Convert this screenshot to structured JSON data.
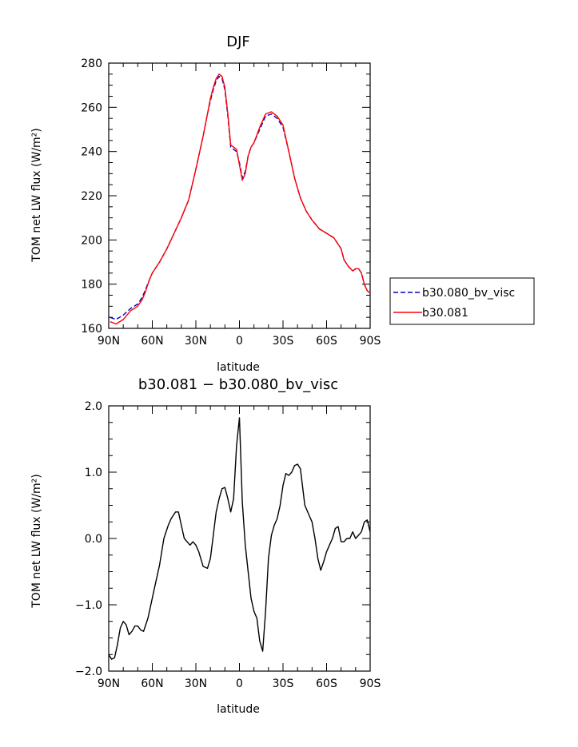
{
  "chart_data": [
    {
      "type": "line",
      "title": "DJF",
      "xlabel": "latitude",
      "ylabel": "TOM net LW flux (W/m²)",
      "ylim": [
        160,
        280
      ],
      "yticks": [
        160,
        180,
        200,
        220,
        240,
        260,
        280
      ],
      "xlim": [
        90,
        -90
      ],
      "xticks": [
        90,
        60,
        30,
        0,
        -30,
        -60,
        -90
      ],
      "xticklabels": [
        "90N",
        "60N",
        "30N",
        "0",
        "30S",
        "60S",
        "90S"
      ],
      "legend": "right",
      "series": [
        {
          "name": "b30.080_bv_visc",
          "color": "#0000cc",
          "dash": "dashed",
          "x": [
            89,
            85,
            80,
            75,
            70,
            67,
            65,
            62,
            60,
            55,
            50,
            45,
            40,
            35,
            30,
            25,
            22,
            20,
            18,
            16,
            14,
            12,
            10,
            8,
            6,
            4,
            2,
            0,
            -2,
            -4,
            -6,
            -8,
            -10,
            -14,
            -18,
            -22,
            -26,
            -30,
            -34,
            -38,
            -42,
            -46,
            -50,
            -55,
            -60,
            -65,
            -70,
            -72,
            -75,
            -78,
            -80,
            -82,
            -84,
            -86,
            -88,
            -90
          ],
          "y": [
            165,
            164,
            166,
            169,
            171,
            174,
            177,
            182,
            185,
            190,
            196,
            203,
            210,
            218,
            232,
            247,
            257,
            263,
            268,
            272,
            274,
            273,
            268,
            256,
            242,
            241,
            240,
            235,
            228,
            231,
            238,
            242,
            244,
            250,
            256,
            257,
            255,
            251,
            240,
            228,
            219,
            213,
            209,
            205,
            203,
            201,
            196,
            191,
            188,
            186,
            187,
            187,
            185,
            180,
            177,
            176
          ]
        },
        {
          "name": "b30.081",
          "color": "#ff0000",
          "dash": "solid",
          "x": [
            89,
            85,
            80,
            75,
            70,
            67,
            65,
            62,
            60,
            55,
            50,
            45,
            40,
            35,
            30,
            25,
            22,
            20,
            18,
            16,
            14,
            12,
            10,
            8,
            6,
            4,
            2,
            0,
            -2,
            -4,
            -6,
            -8,
            -10,
            -14,
            -18,
            -22,
            -26,
            -30,
            -34,
            -38,
            -42,
            -46,
            -50,
            -55,
            -60,
            -65,
            -70,
            -72,
            -75,
            -78,
            -80,
            -82,
            -84,
            -86,
            -88,
            -90
          ],
          "y": [
            163,
            162,
            164,
            168,
            170,
            173,
            176,
            182,
            185,
            190,
            196,
            203,
            210,
            218,
            232,
            247,
            257,
            264,
            269,
            273,
            275,
            274,
            269,
            257,
            243,
            242,
            241,
            234,
            227,
            230,
            238,
            242,
            244,
            251,
            257,
            258,
            256,
            252,
            240,
            228,
            219,
            213,
            209,
            205,
            203,
            201,
            196,
            191,
            188,
            186,
            187,
            187,
            185,
            180,
            177,
            176
          ]
        }
      ]
    },
    {
      "type": "line",
      "title": "b30.081 − b30.080_bv_visc",
      "xlabel": "latitude",
      "ylabel": "TOM net LW flux (W/m²)",
      "ylim": [
        -2.0,
        2.0
      ],
      "yticks": [
        -2.0,
        -1.0,
        0.0,
        1.0,
        2.0
      ],
      "yticklabels": [
        "−2.0",
        "−1.0",
        "0.0",
        "1.0",
        "2.0"
      ],
      "xlim": [
        90,
        -90
      ],
      "xticks": [
        90,
        60,
        30,
        0,
        -30,
        -60,
        -90
      ],
      "xticklabels": [
        "90N",
        "60N",
        "30N",
        "0",
        "30S",
        "60S",
        "90S"
      ],
      "series": [
        {
          "color": "#000000",
          "dash": "solid",
          "x": [
            90,
            88,
            86,
            84,
            82,
            80,
            78,
            76,
            74,
            72,
            70,
            68,
            66,
            63,
            60,
            57,
            55,
            52,
            49,
            47,
            44,
            42,
            40,
            38,
            36,
            34,
            32,
            30,
            28,
            25,
            22,
            20,
            18,
            16,
            14,
            12,
            10,
            8,
            6,
            4,
            2,
            0,
            -2,
            -4,
            -6,
            -8,
            -10,
            -12,
            -14,
            -16,
            -18,
            -20,
            -22,
            -24,
            -26,
            -28,
            -30,
            -32,
            -34,
            -36,
            -38,
            -40,
            -42,
            -45,
            -48,
            -50,
            -52,
            -54,
            -56,
            -58,
            -60,
            -62,
            -64,
            -66,
            -68,
            -70,
            -72,
            -74,
            -76,
            -78,
            -80,
            -82,
            -84,
            -86,
            -88,
            -90
          ],
          "y": [
            -1.75,
            -1.82,
            -1.8,
            -1.6,
            -1.35,
            -1.25,
            -1.3,
            -1.45,
            -1.4,
            -1.32,
            -1.32,
            -1.38,
            -1.4,
            -1.2,
            -0.9,
            -0.6,
            -0.4,
            0.0,
            0.2,
            0.3,
            0.4,
            0.4,
            0.2,
            0.0,
            -0.05,
            -0.1,
            -0.05,
            -0.1,
            -0.2,
            -0.42,
            -0.45,
            -0.3,
            0.05,
            0.4,
            0.6,
            0.75,
            0.77,
            0.6,
            0.4,
            0.6,
            1.4,
            1.82,
            0.55,
            -0.1,
            -0.5,
            -0.9,
            -1.1,
            -1.2,
            -1.55,
            -1.7,
            -1.1,
            -0.3,
            0.05,
            0.2,
            0.3,
            0.5,
            0.8,
            0.98,
            0.95,
            1.0,
            1.1,
            1.12,
            1.05,
            0.5,
            0.35,
            0.25,
            0.0,
            -0.3,
            -0.48,
            -0.35,
            -0.2,
            -0.1,
            0.0,
            0.15,
            0.18,
            -0.05,
            -0.05,
            0.0,
            0.0,
            0.1,
            0.0,
            0.05,
            0.1,
            0.25,
            0.28,
            0.1
          ]
        }
      ]
    }
  ]
}
